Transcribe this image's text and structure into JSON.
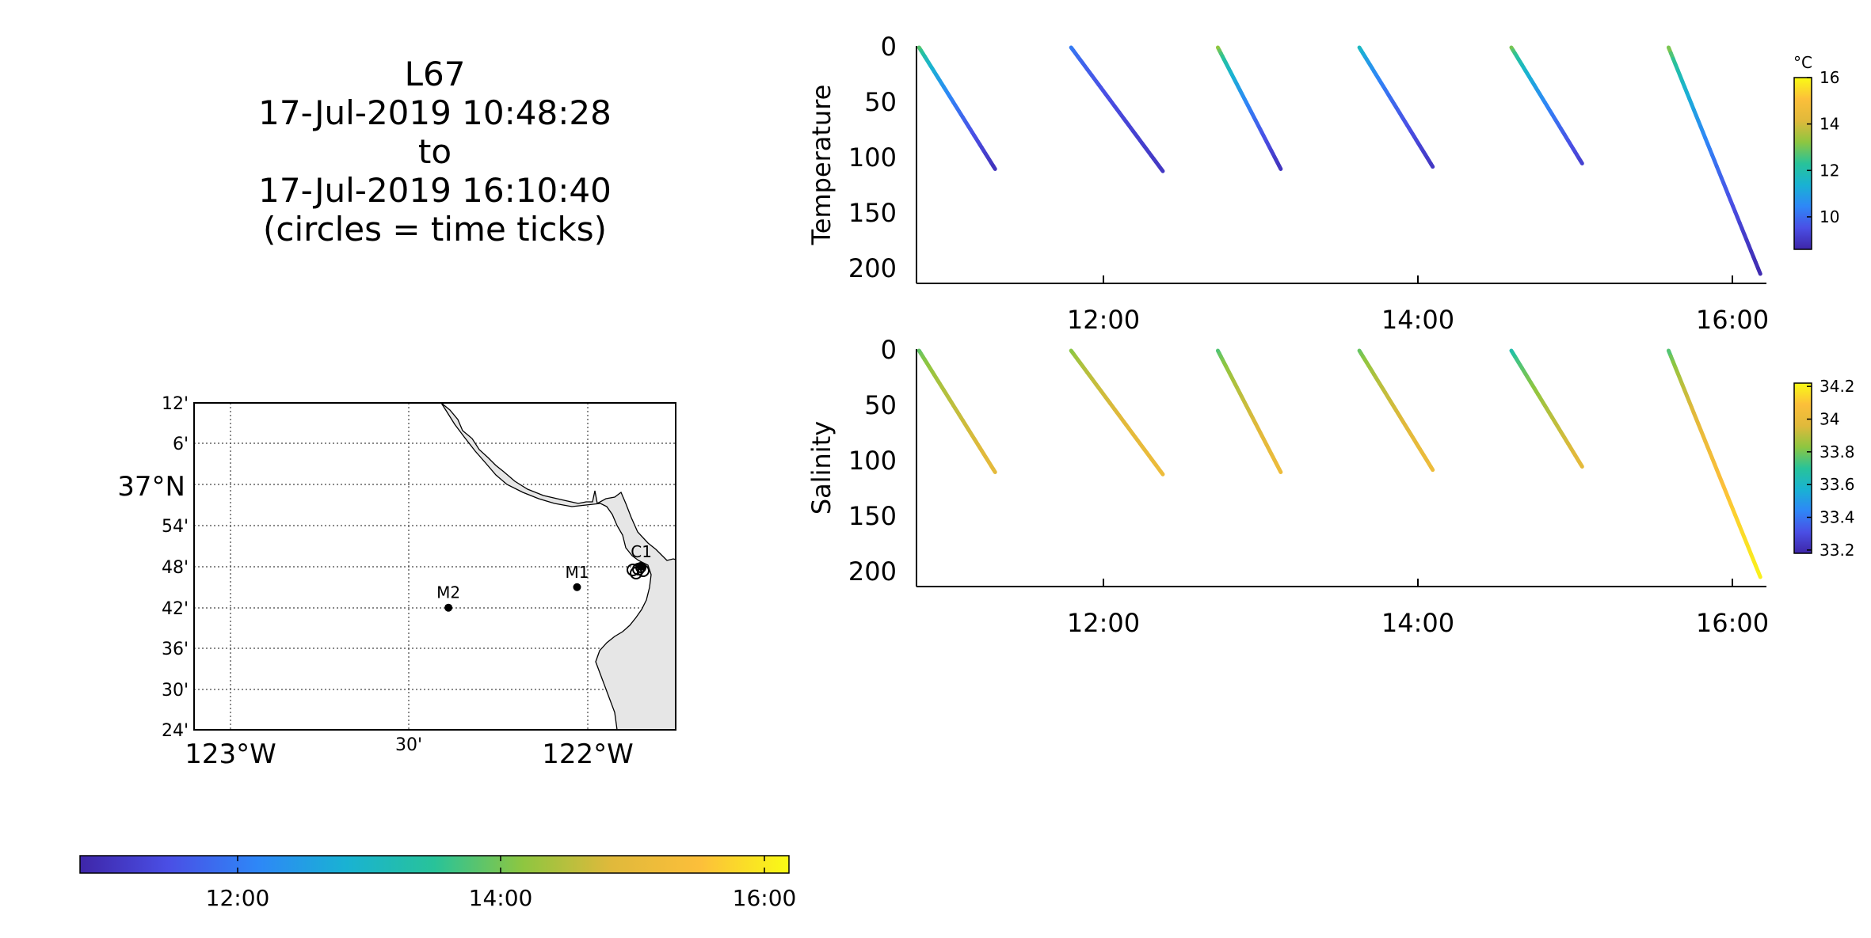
{
  "title": {
    "lines": [
      "L67",
      "17-Jul-2019 10:48:28",
      "to",
      "17-Jul-2019 16:10:40",
      "(circles = time ticks)"
    ]
  },
  "colormap": [
    "#3e26a8",
    "#4a4fe5",
    "#2e87f7",
    "#19b2d3",
    "#28c399",
    "#8ec640",
    "#e0b93b",
    "#fcbf3a",
    "#f9fb15"
  ],
  "map": {
    "lat_labels": [
      "12'",
      "6'",
      "37°N",
      "54'",
      "48'",
      "42'",
      "36'",
      "30'",
      "24'"
    ],
    "lon_labels": [
      "123°W",
      "30'",
      "122°W"
    ],
    "land_color": "#e6e6e6",
    "stations": [
      {
        "name": "M2",
        "lon": -122.39,
        "lat": 36.7
      },
      {
        "name": "M1",
        "lon": -122.03,
        "lat": 36.75
      },
      {
        "name": "C1",
        "lon": -121.85,
        "lat": 36.8
      }
    ]
  },
  "time_colorbar": {
    "ticks": [
      "12:00",
      "14:00",
      "16:00"
    ],
    "range": [
      "10:48",
      "16:10"
    ]
  },
  "chart_data": [
    {
      "type": "scatter",
      "title": "",
      "xlabel": "",
      "ylabel": "Temperature",
      "x_ticks": [
        "12:00",
        "14:00",
        "16:00"
      ],
      "y_ticks": [
        "0",
        "50",
        "100",
        "150",
        "200"
      ],
      "ylim": [
        215,
        0
      ],
      "xlim": [
        "10:48",
        "16:10"
      ],
      "colorbar": {
        "unit": "°C",
        "ticks": [
          "10",
          "12",
          "14",
          "16"
        ],
        "range": [
          8.6,
          16
        ]
      },
      "series": [
        {
          "start": "10:49",
          "end": "11:18",
          "max_depth": 110,
          "surface_value": 13.2,
          "bottom_value": 8.9
        },
        {
          "start": "11:47",
          "end": "12:22",
          "max_depth": 112,
          "surface_value": 10.4,
          "bottom_value": 9.0
        },
        {
          "start": "12:43",
          "end": "13:07",
          "max_depth": 110,
          "surface_value": 13.8,
          "bottom_value": 8.9
        },
        {
          "start": "13:37",
          "end": "14:05",
          "max_depth": 108,
          "surface_value": 12.0,
          "bottom_value": 9.0
        },
        {
          "start": "14:35",
          "end": "15:02",
          "max_depth": 105,
          "surface_value": 13.5,
          "bottom_value": 9.2
        },
        {
          "start": "15:35",
          "end": "16:10",
          "max_depth": 205,
          "surface_value": 13.6,
          "bottom_value": 8.7
        }
      ]
    },
    {
      "type": "scatter",
      "title": "",
      "xlabel": "",
      "ylabel": "Salinity",
      "x_ticks": [
        "12:00",
        "14:00",
        "16:00"
      ],
      "y_ticks": [
        "0",
        "50",
        "100",
        "150",
        "200"
      ],
      "ylim": [
        215,
        0
      ],
      "xlim": [
        "10:48",
        "16:10"
      ],
      "colorbar": {
        "unit": "",
        "ticks": [
          "33.2",
          "33.4",
          "33.6",
          "33.8",
          "34",
          "34.2"
        ],
        "range": [
          33.18,
          34.22
        ]
      },
      "series": [
        {
          "start": "10:49",
          "end": "11:18",
          "max_depth": 110,
          "surface_value": 33.75,
          "bottom_value": 33.98
        },
        {
          "start": "11:47",
          "end": "12:22",
          "max_depth": 112,
          "surface_value": 33.8,
          "bottom_value": 34.02
        },
        {
          "start": "12:43",
          "end": "13:07",
          "max_depth": 110,
          "surface_value": 33.72,
          "bottom_value": 34.02
        },
        {
          "start": "13:37",
          "end": "14:05",
          "max_depth": 108,
          "surface_value": 33.75,
          "bottom_value": 34.02
        },
        {
          "start": "14:35",
          "end": "15:02",
          "max_depth": 105,
          "surface_value": 33.62,
          "bottom_value": 33.98
        },
        {
          "start": "15:35",
          "end": "16:10",
          "max_depth": 205,
          "surface_value": 33.7,
          "bottom_value": 34.2
        }
      ]
    }
  ]
}
